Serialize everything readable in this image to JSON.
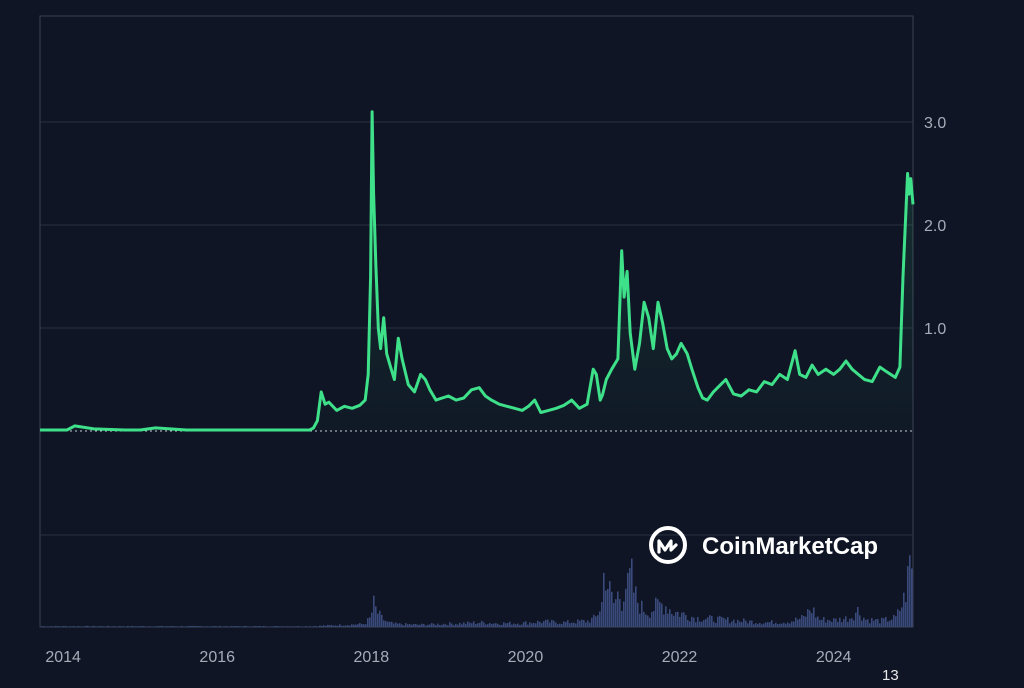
{
  "watermark": "CoinMarketCap",
  "corner_label": "13",
  "colors": {
    "background": "#0f1524",
    "line": "#3ee08a",
    "line_flat": "#e05a4a",
    "volume": "#3a4a7a",
    "grid": "#2a3140",
    "axis": "#4a5060",
    "tick_text": "#a7acb8"
  },
  "chart_data": {
    "type": "line",
    "title": "",
    "xlabel": "",
    "ylabel": "",
    "xlim": [
      2013.7,
      2025.03
    ],
    "ylim": [
      0,
      3.0
    ],
    "y_ticks": [
      {
        "value": 1.0,
        "label": "1.0"
      },
      {
        "value": 2.0,
        "label": "2.0"
      },
      {
        "value": 3.0,
        "label": "3.0"
      }
    ],
    "x_ticks": [
      {
        "value": 2014,
        "label": "2014"
      },
      {
        "value": 2016,
        "label": "2016"
      },
      {
        "value": 2018,
        "label": "2018"
      },
      {
        "value": 2020,
        "label": "2020"
      },
      {
        "value": 2022,
        "label": "2022"
      },
      {
        "value": 2024,
        "label": "2024"
      }
    ],
    "grid": true,
    "legend": "none",
    "series": [
      {
        "x": [
          2013.7,
          2014.05,
          2014.15,
          2014.4,
          2014.8,
          2015.0,
          2015.2,
          2015.6,
          2016.0,
          2016.5,
          2017.0,
          2017.2,
          2017.25,
          2017.3,
          2017.35,
          2017.4,
          2017.45,
          2017.55,
          2017.65,
          2017.75,
          2017.85,
          2017.92,
          2017.96,
          2017.99,
          2018.01,
          2018.03,
          2018.06,
          2018.09,
          2018.12,
          2018.16,
          2018.2,
          2018.25,
          2018.3,
          2018.35,
          2018.4,
          2018.48,
          2018.56,
          2018.64,
          2018.7,
          2018.76,
          2018.84,
          2018.92,
          2019.0,
          2019.1,
          2019.2,
          2019.3,
          2019.4,
          2019.48,
          2019.56,
          2019.66,
          2019.76,
          2019.86,
          2019.96,
          2020.04,
          2020.12,
          2020.2,
          2020.3,
          2020.4,
          2020.5,
          2020.6,
          2020.7,
          2020.8,
          2020.88,
          2020.92,
          2020.97,
          2021.0,
          2021.05,
          2021.12,
          2021.2,
          2021.25,
          2021.28,
          2021.32,
          2021.36,
          2021.42,
          2021.48,
          2021.54,
          2021.6,
          2021.66,
          2021.72,
          2021.78,
          2021.84,
          2021.9,
          2021.96,
          2022.02,
          2022.1,
          2022.16,
          2022.24,
          2022.3,
          2022.36,
          2022.44,
          2022.52,
          2022.6,
          2022.7,
          2022.8,
          2022.9,
          2023.0,
          2023.1,
          2023.2,
          2023.3,
          2023.4,
          2023.5,
          2023.56,
          2023.64,
          2023.72,
          2023.8,
          2023.9,
          2024.0,
          2024.08,
          2024.16,
          2024.24,
          2024.32,
          2024.4,
          2024.5,
          2024.6,
          2024.68,
          2024.74,
          2024.8,
          2024.86,
          2024.9,
          2024.93,
          2024.96,
          2024.98,
          2025.0,
          2025.03
        ],
        "values": [
          0.01,
          0.01,
          0.05,
          0.02,
          0.01,
          0.01,
          0.03,
          0.01,
          0.01,
          0.01,
          0.01,
          0.01,
          0.03,
          0.1,
          0.38,
          0.26,
          0.28,
          0.2,
          0.24,
          0.22,
          0.25,
          0.3,
          0.55,
          1.5,
          3.1,
          2.3,
          1.6,
          1.0,
          0.8,
          1.1,
          0.75,
          0.62,
          0.5,
          0.9,
          0.7,
          0.45,
          0.38,
          0.55,
          0.5,
          0.4,
          0.3,
          0.32,
          0.34,
          0.3,
          0.32,
          0.4,
          0.42,
          0.34,
          0.3,
          0.26,
          0.24,
          0.22,
          0.2,
          0.24,
          0.3,
          0.18,
          0.2,
          0.22,
          0.25,
          0.3,
          0.22,
          0.26,
          0.6,
          0.55,
          0.3,
          0.35,
          0.5,
          0.6,
          0.7,
          1.75,
          1.3,
          1.55,
          0.95,
          0.6,
          0.85,
          1.25,
          1.1,
          0.8,
          1.25,
          1.05,
          0.8,
          0.7,
          0.75,
          0.85,
          0.75,
          0.6,
          0.42,
          0.32,
          0.3,
          0.38,
          0.44,
          0.5,
          0.36,
          0.34,
          0.4,
          0.38,
          0.48,
          0.45,
          0.55,
          0.5,
          0.78,
          0.55,
          0.52,
          0.64,
          0.55,
          0.6,
          0.55,
          0.6,
          0.68,
          0.6,
          0.55,
          0.5,
          0.48,
          0.62,
          0.58,
          0.55,
          0.52,
          0.62,
          1.5,
          2.0,
          2.5,
          2.3,
          2.45,
          2.2
        ]
      }
    ],
    "volume": {
      "x": [
        2013.7,
        2017.2,
        2017.9,
        2017.98,
        2018.02,
        2018.06,
        2018.12,
        2018.2,
        2018.3,
        2018.6,
        2018.9,
        2019.2,
        2019.4,
        2019.6,
        2019.9,
        2020.2,
        2020.5,
        2020.8,
        2020.9,
        2020.98,
        2021.02,
        2021.06,
        2021.1,
        2021.14,
        2021.2,
        2021.24,
        2021.28,
        2021.32,
        2021.36,
        2021.4,
        2021.44,
        2021.5,
        2021.58,
        2021.66,
        2021.74,
        2021.82,
        2021.9,
        2022.0,
        2022.2,
        2022.5,
        2022.8,
        2023.1,
        2023.4,
        2023.6,
        2023.7,
        2023.8,
        2024.0,
        2024.2,
        2024.3,
        2024.4,
        2024.6,
        2024.8,
        2024.9,
        2024.95,
        2024.98,
        2025.0,
        2025.03
      ],
      "values": [
        0.01,
        0.01,
        0.04,
        0.12,
        0.3,
        0.2,
        0.12,
        0.06,
        0.04,
        0.03,
        0.04,
        0.05,
        0.06,
        0.05,
        0.05,
        0.07,
        0.06,
        0.08,
        0.12,
        0.3,
        0.85,
        0.55,
        0.4,
        0.3,
        0.45,
        0.35,
        0.6,
        0.5,
        0.7,
        0.45,
        0.35,
        0.25,
        0.2,
        0.25,
        0.3,
        0.28,
        0.2,
        0.18,
        0.12,
        0.1,
        0.08,
        0.06,
        0.07,
        0.12,
        0.25,
        0.1,
        0.09,
        0.12,
        0.22,
        0.1,
        0.08,
        0.12,
        0.35,
        0.6,
        0.9,
        0.7,
        0.75
      ]
    }
  }
}
